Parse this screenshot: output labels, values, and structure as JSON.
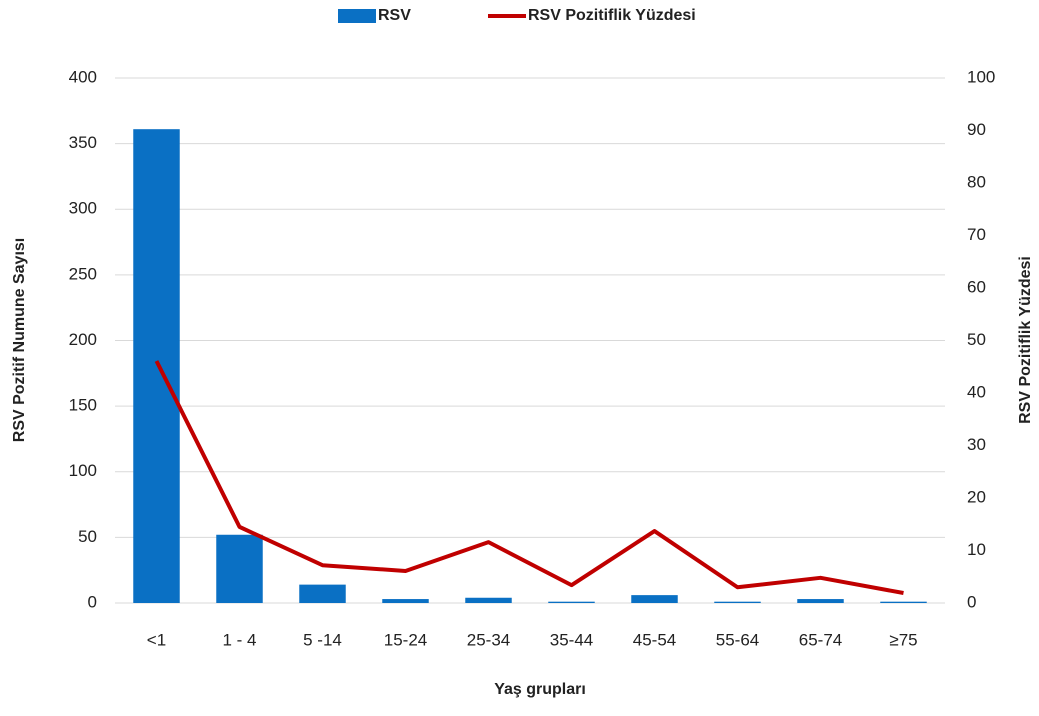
{
  "chart_data": {
    "type": "bar",
    "x_label": "Yaş grupları",
    "y_label": "RSV  Pozitif Numune Sayısı",
    "y2_label": "RSV Pozitiflik Yüzdesi",
    "categories": [
      "<1",
      "1 - 4",
      "5 -14",
      "15-24",
      "25-34",
      "35-44",
      "45-54",
      "55-64",
      "65-74",
      "≥75"
    ],
    "series": [
      {
        "name": "RSV",
        "type": "bar",
        "color": "#0a70c4",
        "values": [
          361,
          52,
          14,
          3,
          4,
          1,
          6,
          1,
          3,
          1
        ]
      },
      {
        "name": "RSV Pozitiflik Yüzdesi",
        "type": "line",
        "axis": "y2",
        "color": "#c00000",
        "values": [
          46.1,
          14.5,
          7.2,
          6.1,
          11.6,
          3.4,
          13.7,
          3.0,
          4.8,
          1.9
        ]
      }
    ],
    "ylim": [
      0,
      400
    ],
    "yticks": [
      0,
      50,
      100,
      150,
      200,
      250,
      300,
      350,
      400
    ],
    "y2lim": [
      0,
      100
    ],
    "y2ticks": [
      0,
      10,
      20,
      30,
      40,
      50,
      60,
      70,
      80,
      90,
      100
    ],
    "grid": true,
    "legend": "top"
  }
}
